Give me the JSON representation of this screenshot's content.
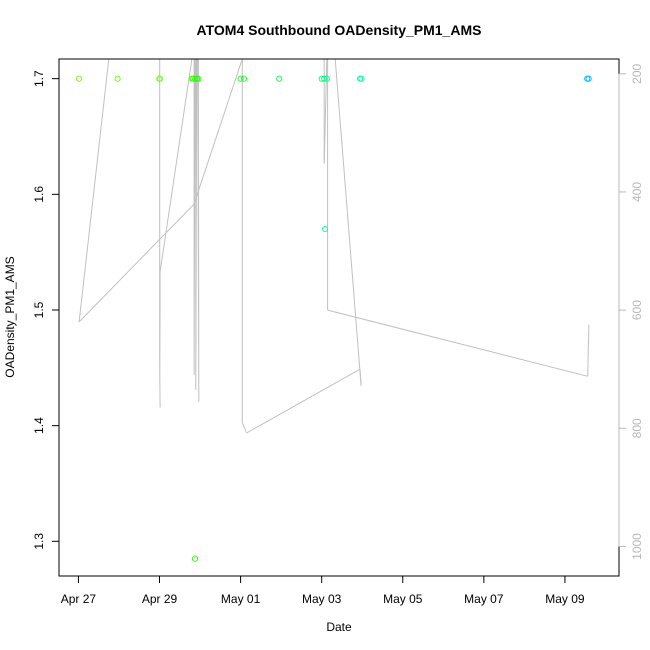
{
  "chart_data": {
    "type": "scatter",
    "title": "ATOM4 Southbound OADensity_PM1_AMS",
    "xlabel": "Date",
    "ylabel": "OADensity_PM1_AMS",
    "xlim": [
      "2018-04-26T12:30",
      "2018-05-10T08:00"
    ],
    "ylim": [
      1.27,
      1.717
    ],
    "x_ticks": [
      {
        "date": "2018-04-27",
        "label": "Apr 27"
      },
      {
        "date": "2018-04-29",
        "label": "Apr 29"
      },
      {
        "date": "2018-05-01",
        "label": "May 01"
      },
      {
        "date": "2018-05-03",
        "label": "May 03"
      },
      {
        "date": "2018-05-05",
        "label": "May 05"
      },
      {
        "date": "2018-05-07",
        "label": "May 07"
      },
      {
        "date": "2018-05-09",
        "label": "May 09"
      }
    ],
    "y_ticks": [
      1.3,
      1.4,
      1.5,
      1.6,
      1.7
    ],
    "y_tick_labels": [
      "1.3",
      "1.4",
      "1.5",
      "1.6",
      "1.7"
    ],
    "secondary_axis": {
      "side": "right",
      "color": "#b8b8b8",
      "reversed": true,
      "range": [
        175,
        1050
      ],
      "ticks": [
        200,
        400,
        600,
        800,
        1000
      ],
      "tick_labels": [
        "200",
        "400",
        "600",
        "800",
        "1000"
      ]
    },
    "points": [
      {
        "x": "2018-04-27T00:25",
        "y": 1.7,
        "color": "#66ff00"
      },
      {
        "x": "2018-04-27T23:10",
        "y": 1.7,
        "color": "#66ff00"
      },
      {
        "x": "2018-04-28T23:55",
        "y": 1.7,
        "color": "#55ff00"
      },
      {
        "x": "2018-04-29T00:10",
        "y": 1.7,
        "color": "#55ff00"
      },
      {
        "x": "2018-04-29T19:10",
        "y": 1.7,
        "color": "#33ff00"
      },
      {
        "x": "2018-04-29T20:00",
        "y": 1.7,
        "color": "#33ff00"
      },
      {
        "x": "2018-04-29T21:05",
        "y": 1.7,
        "color": "#33ff00"
      },
      {
        "x": "2018-04-29T22:10",
        "y": 1.7,
        "color": "#22ff00"
      },
      {
        "x": "2018-04-29T23:00",
        "y": 1.7,
        "color": "#22ff00"
      },
      {
        "x": "2018-04-29T21:00",
        "y": 1.285,
        "color": "#22ff00"
      },
      {
        "x": "2018-05-01T00:00",
        "y": 1.7,
        "color": "#11ff22"
      },
      {
        "x": "2018-05-01T02:00",
        "y": 1.7,
        "color": "#11ff22"
      },
      {
        "x": "2018-05-01T22:50",
        "y": 1.7,
        "color": "#00ff44"
      },
      {
        "x": "2018-05-03T00:00",
        "y": 1.7,
        "color": "#00ff66"
      },
      {
        "x": "2018-05-03T01:30",
        "y": 1.7,
        "color": "#00ff77"
      },
      {
        "x": "2018-05-03T03:00",
        "y": 1.7,
        "color": "#00ff88"
      },
      {
        "x": "2018-05-03T02:00",
        "y": 1.57,
        "color": "#00ff99"
      },
      {
        "x": "2018-05-03T22:40",
        "y": 1.7,
        "color": "#00ffb0"
      },
      {
        "x": "2018-05-03T23:30",
        "y": 1.7,
        "color": "#00ffb0"
      },
      {
        "x": "2018-05-09T13:10",
        "y": 1.7,
        "color": "#00b8ff"
      },
      {
        "x": "2018-05-09T14:00",
        "y": 1.7,
        "color": "#00b8ff"
      }
    ],
    "line": {
      "color": "#c0c0c0",
      "axis": "secondary",
      "points": [
        {
          "x": "2018-04-27T00:25",
          "y2": 620
        },
        {
          "x": "2018-04-27T18:00",
          "y2": 175
        },
        {
          "x": "2018-04-29T00:05",
          "y2": 175
        },
        {
          "x": "2018-04-29T00:05",
          "y2": 695
        },
        {
          "x": "2018-04-29T00:20",
          "y2": 765
        },
        {
          "x": "2018-04-29T00:10",
          "y2": 705
        },
        {
          "x": "2018-04-29T00:20",
          "y2": 590
        },
        {
          "x": "2018-04-29T00:20",
          "y2": 535
        },
        {
          "x": "2018-04-29T19:10",
          "y2": 175
        },
        {
          "x": "2018-04-29T20:30",
          "y2": 175
        },
        {
          "x": "2018-04-29T20:30",
          "y2": 710
        },
        {
          "x": "2018-04-29T21:00",
          "y2": 175
        },
        {
          "x": "2018-04-29T21:30",
          "y2": 175
        },
        {
          "x": "2018-04-29T21:30",
          "y2": 735
        },
        {
          "x": "2018-04-29T22:05",
          "y2": 175
        },
        {
          "x": "2018-04-29T23:00",
          "y2": 175
        },
        {
          "x": "2018-04-29T23:15",
          "y2": 755
        },
        {
          "x": "2018-04-29T22:40",
          "y2": 175
        },
        {
          "x": "2018-04-29T20:30",
          "y2": 175
        },
        {
          "x": "2018-04-29T20:40",
          "y2": 420
        },
        {
          "x": "2018-04-27T00:25",
          "y2": 620
        },
        {
          "x": "2018-04-27T00:25",
          "y2": 620
        }
      ],
      "segments": [
        [
          {
            "x": "2018-04-29T20:30",
            "y2": 420
          },
          {
            "x": "2018-05-01T01:00",
            "y2": 175
          }
        ],
        [
          {
            "x": "2018-05-01T01:00",
            "y2": 175
          },
          {
            "x": "2018-05-01T01:00",
            "y2": 790
          }
        ],
        [
          {
            "x": "2018-05-01T01:00",
            "y2": 790
          },
          {
            "x": "2018-05-01T03:30",
            "y2": 808
          }
        ],
        [
          {
            "x": "2018-05-01T03:30",
            "y2": 808
          },
          {
            "x": "2018-05-03T22:40",
            "y2": 700
          }
        ],
        [
          {
            "x": "2018-05-03T22:40",
            "y2": 700
          },
          {
            "x": "2018-05-03T23:20",
            "y2": 728
          }
        ],
        [
          {
            "x": "2018-05-03T23:20",
            "y2": 728
          },
          {
            "x": "2018-05-03T08:00",
            "y2": 175
          }
        ],
        [
          {
            "x": "2018-05-03T08:00",
            "y2": 175
          },
          {
            "x": "2018-05-03T01:30",
            "y2": 175
          }
        ],
        [
          {
            "x": "2018-05-03T01:30",
            "y2": 175
          },
          {
            "x": "2018-05-03T01:30",
            "y2": 352
          }
        ],
        [
          {
            "x": "2018-05-03T01:30",
            "y2": 352
          },
          {
            "x": "2018-05-03T03:00",
            "y2": 175
          }
        ],
        [
          {
            "x": "2018-05-03T03:00",
            "y2": 175
          },
          {
            "x": "2018-05-03T03:30",
            "y2": 175
          }
        ],
        [
          {
            "x": "2018-05-03T03:30",
            "y2": 175
          },
          {
            "x": "2018-05-03T03:30",
            "y2": 600
          }
        ],
        [
          {
            "x": "2018-05-03T03:30",
            "y2": 600
          },
          {
            "x": "2018-05-09T13:30",
            "y2": 712
          }
        ],
        [
          {
            "x": "2018-05-09T13:30",
            "y2": 712
          },
          {
            "x": "2018-05-09T14:10",
            "y2": 625
          }
        ]
      ]
    },
    "grid": false,
    "legend": "none"
  }
}
